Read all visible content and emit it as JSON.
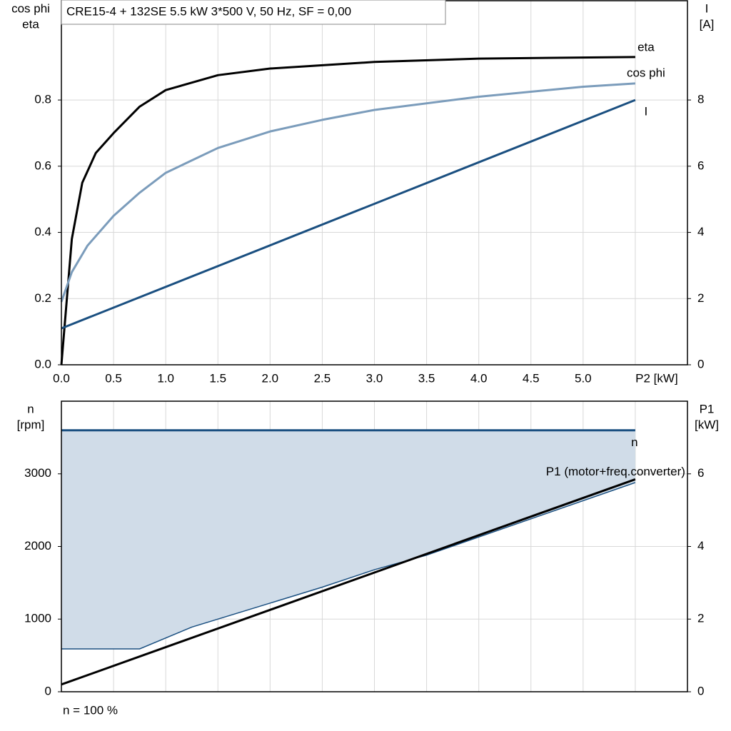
{
  "chart_data": [
    {
      "type": "line",
      "title": "CRE15-4 + 132SE   5.5 kW   3*500 V, 50 Hz, SF = 0,00",
      "y_label": [
        "cos phi",
        "eta"
      ],
      "y2_label": [
        "I",
        "[A]"
      ],
      "xlim": [
        0,
        6
      ],
      "ylim": [
        0,
        1.1
      ],
      "y2lim": [
        0,
        11
      ],
      "grid": true,
      "xticks": [
        {
          "value": 0,
          "label": "0.0"
        },
        0.5,
        {
          "value": 1,
          "label": "1.0"
        },
        1.5,
        {
          "value": 2,
          "label": "2.0"
        },
        2.5,
        {
          "value": 3,
          "label": "3.0"
        },
        3.5,
        {
          "value": 4,
          "label": "4.0"
        },
        4.5,
        {
          "value": 5,
          "label": "5.0"
        },
        {
          "value": 5.5,
          "label": "P2 [kW]"
        }
      ],
      "yticks": [
        {
          "value": 0,
          "label": "0.0"
        },
        0.2,
        0.4,
        0.6,
        0.8
      ],
      "y2ticks": [
        0,
        2,
        4,
        6,
        8
      ],
      "series": [
        {
          "name": "eta",
          "color": "#000000",
          "x": [
            0,
            0.1,
            0.2,
            0.33,
            0.5,
            0.75,
            1.0,
            1.5,
            2.0,
            3.0,
            4.0,
            5.5
          ],
          "values": [
            0,
            0.38,
            0.55,
            0.64,
            0.7,
            0.78,
            0.83,
            0.875,
            0.895,
            0.915,
            0.925,
            0.93
          ]
        },
        {
          "name": "cos phi",
          "color": "#7b9cbb",
          "x": [
            0,
            0.1,
            0.25,
            0.5,
            0.75,
            1.0,
            1.5,
            2.0,
            2.5,
            3.0,
            4.0,
            5.0,
            5.5
          ],
          "values": [
            0.19,
            0.28,
            0.36,
            0.45,
            0.52,
            0.58,
            0.655,
            0.705,
            0.74,
            0.77,
            0.81,
            0.84,
            0.85
          ]
        },
        {
          "name": "I",
          "color": "#1a4f80",
          "axis": "y2",
          "x": [
            0,
            5.5
          ],
          "values": [
            1.1,
            8.0
          ]
        }
      ]
    },
    {
      "type": "line",
      "y_label": [
        "n",
        "[rpm]"
      ],
      "y2_label": [
        "P1",
        "[kW]"
      ],
      "footnote": "n = 100 %",
      "xlim": [
        0,
        6
      ],
      "ylim": [
        0,
        4000
      ],
      "y2lim": [
        0,
        8
      ],
      "grid": true,
      "yticks": [
        0,
        1000,
        2000,
        3000
      ],
      "y2ticks": [
        0,
        2,
        4,
        6
      ],
      "series": [
        {
          "name": "n",
          "color": "#1a4f80",
          "fill": "#d0dce8",
          "x": [
            0,
            0.75,
            1.25,
            2.5,
            3.0,
            3.5,
            5.5
          ],
          "values": [
            3600,
            3600,
            3600,
            3600,
            3600,
            3600,
            3600
          ],
          "low": [
            590,
            590,
            890,
            1440,
            1680,
            1880,
            2880
          ]
        },
        {
          "name": "P1 (motor+freq.converter)",
          "color": "#000000",
          "axis": "y2",
          "x": [
            0,
            5.5
          ],
          "values": [
            0.2,
            5.85
          ]
        }
      ]
    }
  ]
}
